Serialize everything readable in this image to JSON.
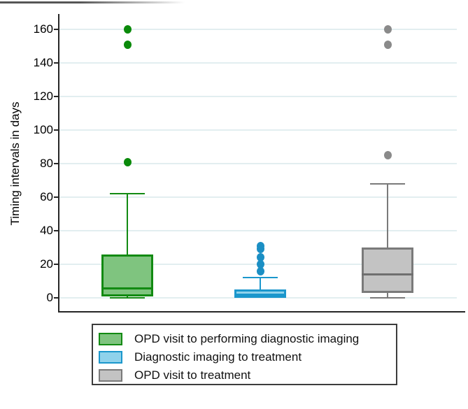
{
  "figure": {
    "y_axis_title": "Timing intervals in days"
  },
  "chart_data": {
    "type": "box",
    "title": "",
    "xlabel": "",
    "ylabel": "Timing intervals in days",
    "ylim": [
      -8,
      168
    ],
    "yticks": [
      0,
      20,
      40,
      60,
      80,
      100,
      120,
      140,
      160
    ],
    "grid": true,
    "legend_position": "bottom-boxed",
    "series": [
      {
        "name": "OPD visit to performing diagnostic imaging",
        "min": 0,
        "q1": 1,
        "median": 6,
        "q3": 26,
        "whisker_low": 0,
        "whisker_high": 62,
        "outliers": [
          81,
          151,
          160
        ],
        "fill": "#7fc47f",
        "stroke": "#128a12",
        "dot_color": "#0a8a0a",
        "median_color": "#128a12"
      },
      {
        "name": "Diagnostic imaging to treatment",
        "min": 0,
        "q1": 0,
        "median": 2,
        "q3": 5,
        "whisker_low": 0,
        "whisker_high": 12,
        "outliers": [
          16,
          20,
          24,
          29,
          31
        ],
        "fill": "#8fd2eb",
        "stroke": "#1b97cc",
        "dot_color": "#1b8fc4",
        "median_color": "#1b97cc"
      },
      {
        "name": "OPD visit to treatment",
        "min": 0,
        "q1": 3,
        "median": 14,
        "q3": 30,
        "whisker_low": 0,
        "whisker_high": 68,
        "outliers": [
          85,
          151,
          160
        ],
        "fill": "#c3c3c3",
        "stroke": "#7a7a7a",
        "dot_color": "#8a8a8a",
        "median_color": "#6f6f6f"
      }
    ]
  },
  "colors": {
    "gridline": "#e2eef0",
    "axis": "#262626",
    "legend_border": "#3c3c3c"
  }
}
